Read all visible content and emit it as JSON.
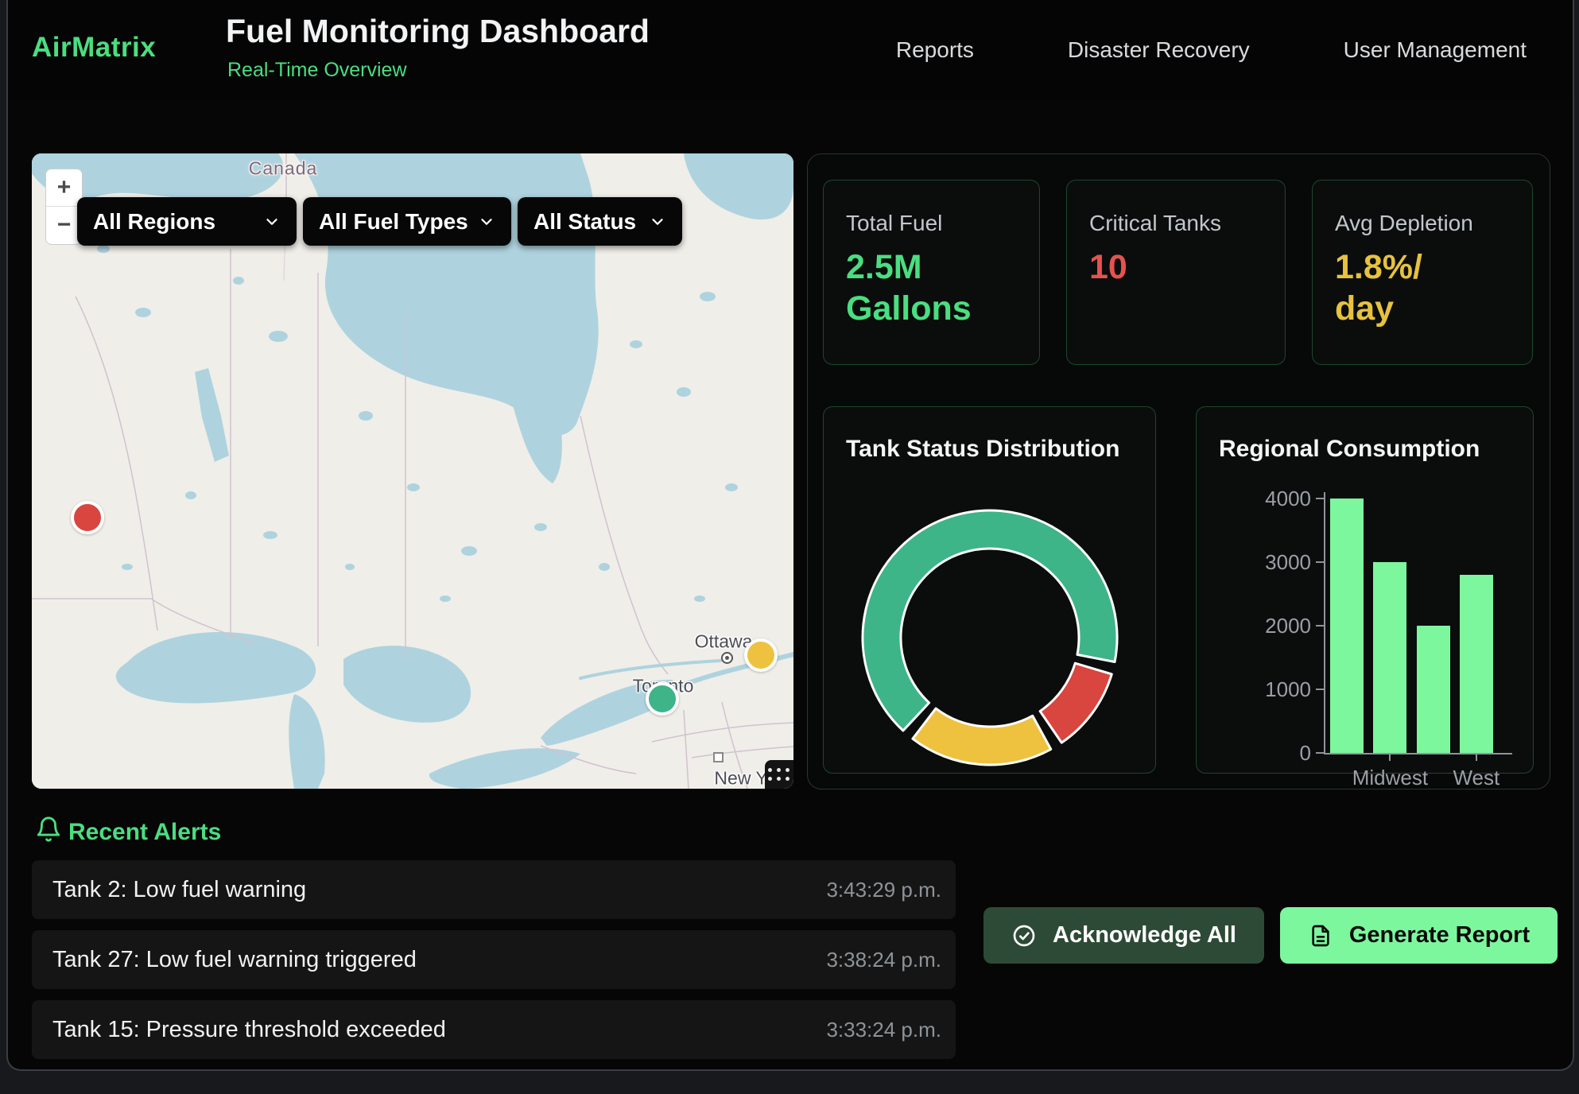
{
  "header": {
    "logo": "AirMatrix",
    "title": "Fuel Monitoring Dashboard",
    "subtitle": "Real-Time Overview",
    "nav": [
      {
        "label": "Reports"
      },
      {
        "label": "Disaster Recovery"
      },
      {
        "label": "User Management"
      }
    ]
  },
  "map": {
    "region_label": "Canada",
    "zoom_in": "+",
    "zoom_out": "−",
    "filters": [
      {
        "value": "All Regions"
      },
      {
        "value": "All Fuel Types"
      },
      {
        "value": "All Status"
      }
    ],
    "city_labels": [
      "Ottawa",
      "Toronto",
      "New York"
    ],
    "markers": [
      {
        "status": "critical",
        "color": "#d9453f"
      },
      {
        "status": "warning",
        "color": "#eec23f"
      },
      {
        "status": "normal",
        "color": "#3eb489"
      }
    ]
  },
  "kpis": [
    {
      "label": "Total Fuel",
      "value": "2.5M\nGallons",
      "color": "#4ade80"
    },
    {
      "label": "Critical Tanks",
      "value": "10",
      "color": "#e5534e"
    },
    {
      "label": "Avg Depletion",
      "value": "1.8%/\nday",
      "color": "#e6c23e"
    }
  ],
  "chart_data": [
    {
      "type": "donut",
      "title": "Tank Status Distribution",
      "slices": [
        {
          "color_name": "green",
          "color": "#3eb489",
          "arc_degrees": 238,
          "share_pct": 69
        },
        {
          "color_name": "red",
          "color": "#d9453f",
          "arc_degrees": 39,
          "share_pct": 12
        },
        {
          "color_name": "yellow",
          "color": "#eec23f",
          "arc_degrees": 66,
          "share_pct": 19
        }
      ],
      "rotation_start_deg": -137,
      "gap_degrees": 5.67,
      "labels_shown": false,
      "legend": "none"
    },
    {
      "type": "bar",
      "title": "Regional Consumption",
      "x_tick_labels": [
        "",
        "Midwest",
        "",
        "West"
      ],
      "values": [
        4000,
        3000,
        2000,
        2800
      ],
      "y_ticks": [
        0,
        1000,
        2000,
        3000,
        4000
      ],
      "ylim": [
        0,
        4000
      ],
      "bar_color": "#7df79e",
      "axis_color": "#8f949a",
      "grid": false,
      "legend": "none"
    }
  ],
  "alerts": {
    "section_title": "Recent Alerts",
    "items": [
      {
        "message": "Tank 2: Low fuel warning",
        "time": "3:43:29 p.m."
      },
      {
        "message": "Tank 27: Low fuel warning triggered",
        "time": "3:38:24 p.m."
      },
      {
        "message": "Tank 15: Pressure threshold exceeded",
        "time": "3:33:24 p.m."
      }
    ]
  },
  "actions": {
    "acknowledge_all": "Acknowledge All",
    "generate_report": "Generate Report"
  },
  "icons": {
    "bell": "bell-icon",
    "check": "check-circle-icon",
    "document": "file-text-icon",
    "chevron": "chevron-down-icon",
    "drag": "drag-handle-icon"
  },
  "colors": {
    "accent_green": "#4ade80",
    "bright_green": "#7df79e",
    "red": "#e5534e",
    "yellow": "#e6c23e",
    "map_land": "#f0eee9",
    "map_water": "#aed3df"
  }
}
